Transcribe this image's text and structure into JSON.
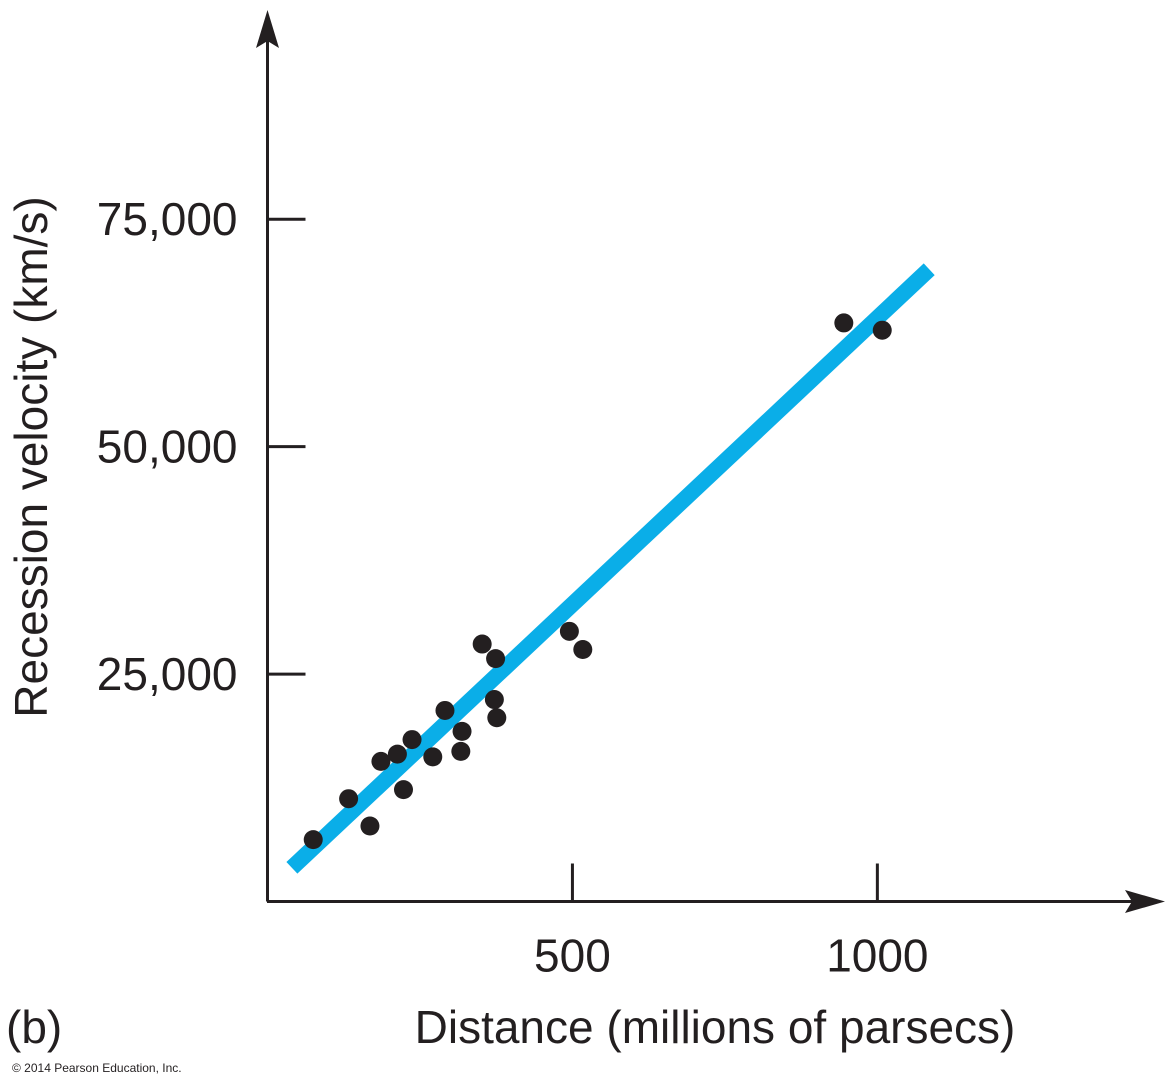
{
  "panel_label": "(b)",
  "copyright": "© 2014 Pearson Education, Inc.",
  "chart_data": {
    "type": "scatter",
    "xlabel": "Distance (millions of parsecs)",
    "ylabel": "Recession velocity (km/s)",
    "xlim": [
      0,
      1470
    ],
    "ylim": [
      0,
      98000
    ],
    "x_ticks": [
      500,
      1000
    ],
    "x_tick_labels": [
      "500",
      "1000"
    ],
    "y_ticks": [
      25000,
      50000,
      75000
    ],
    "y_tick_labels": [
      "25,000",
      "50,000",
      "75,000"
    ],
    "grid": false,
    "fit_line": {
      "color": "#0aaee8",
      "points": [
        [
          40,
          3700
        ],
        [
          1085,
          69500
        ]
      ]
    },
    "points": [
      [
        75,
        6800
      ],
      [
        133,
        11300
      ],
      [
        168,
        8300
      ],
      [
        186,
        15400
      ],
      [
        213,
        16200
      ],
      [
        223,
        12300
      ],
      [
        237,
        17800
      ],
      [
        271,
        15900
      ],
      [
        291,
        21000
      ],
      [
        317,
        16500
      ],
      [
        319,
        18700
      ],
      [
        352,
        28300
      ],
      [
        372,
        22200
      ],
      [
        374,
        26700
      ],
      [
        376,
        20200
      ],
      [
        495,
        29700
      ],
      [
        517,
        27700
      ],
      [
        945,
        63600
      ],
      [
        1008,
        62800
      ]
    ],
    "point_color": "#231f20"
  }
}
